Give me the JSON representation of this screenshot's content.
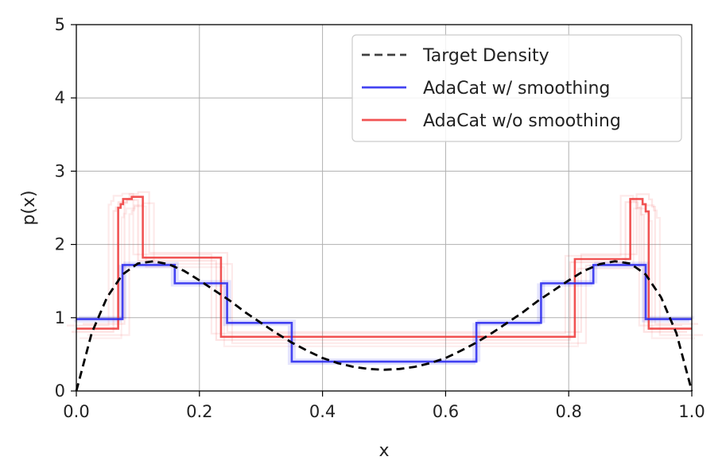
{
  "chart_data": {
    "type": "line",
    "title": "",
    "xlabel": "x",
    "ylabel": "p(x)",
    "xlim": [
      0.0,
      1.0
    ],
    "ylim": [
      0,
      5
    ],
    "x_ticks": [
      "0.0",
      "0.2",
      "0.4",
      "0.6",
      "0.8",
      "1.0"
    ],
    "y_ticks": [
      "0",
      "1",
      "2",
      "3",
      "4",
      "5"
    ],
    "grid": true,
    "legend_position": "top-right",
    "series": [
      {
        "name": "Target Density",
        "style": "dashed",
        "color": "#000000",
        "x": [
          0.0,
          0.025,
          0.05,
          0.075,
          0.1,
          0.125,
          0.15,
          0.175,
          0.2,
          0.225,
          0.25,
          0.275,
          0.3,
          0.325,
          0.35,
          0.375,
          0.4,
          0.425,
          0.45,
          0.475,
          0.5,
          0.525,
          0.55,
          0.575,
          0.6,
          0.625,
          0.65,
          0.675,
          0.7,
          0.725,
          0.75,
          0.775,
          0.8,
          0.825,
          0.85,
          0.875,
          0.9,
          0.925,
          0.95,
          0.975,
          1.0
        ],
        "y": [
          0.0,
          0.79,
          1.28,
          1.59,
          1.74,
          1.77,
          1.73,
          1.64,
          1.51,
          1.37,
          1.23,
          1.07,
          0.93,
          0.79,
          0.66,
          0.55,
          0.45,
          0.38,
          0.33,
          0.3,
          0.29,
          0.3,
          0.33,
          0.38,
          0.45,
          0.55,
          0.66,
          0.79,
          0.93,
          1.07,
          1.23,
          1.37,
          1.51,
          1.64,
          1.73,
          1.77,
          1.74,
          1.59,
          1.28,
          0.79,
          0.0
        ]
      },
      {
        "name": "AdaCat w/ smoothing",
        "style": "step",
        "color": "#2323ee",
        "x": [
          0.0,
          0.075,
          0.075,
          0.16,
          0.16,
          0.245,
          0.245,
          0.35,
          0.35,
          0.65,
          0.65,
          0.755,
          0.755,
          0.84,
          0.84,
          0.925,
          0.925,
          1.0
        ],
        "y": [
          0.98,
          0.98,
          1.72,
          1.72,
          1.47,
          1.47,
          0.93,
          0.93,
          0.4,
          0.4,
          0.93,
          0.93,
          1.47,
          1.47,
          1.72,
          1.72,
          0.98,
          0.98
        ]
      },
      {
        "name": "AdaCat w/o smoothing",
        "style": "step",
        "color": "#ee3535",
        "x": [
          0.0,
          0.068,
          0.068,
          0.072,
          0.072,
          0.076,
          0.076,
          0.09,
          0.09,
          0.108,
          0.108,
          0.235,
          0.235,
          0.81,
          0.81,
          0.9,
          0.9,
          0.92,
          0.92,
          0.925,
          0.925,
          0.93,
          0.93,
          1.0
        ],
        "y": [
          0.85,
          0.85,
          2.5,
          2.5,
          2.55,
          2.55,
          2.62,
          2.62,
          2.65,
          2.65,
          1.82,
          1.82,
          0.74,
          0.74,
          1.8,
          1.8,
          2.62,
          2.62,
          2.55,
          2.55,
          2.45,
          2.45,
          0.85,
          0.85
        ]
      }
    ]
  }
}
